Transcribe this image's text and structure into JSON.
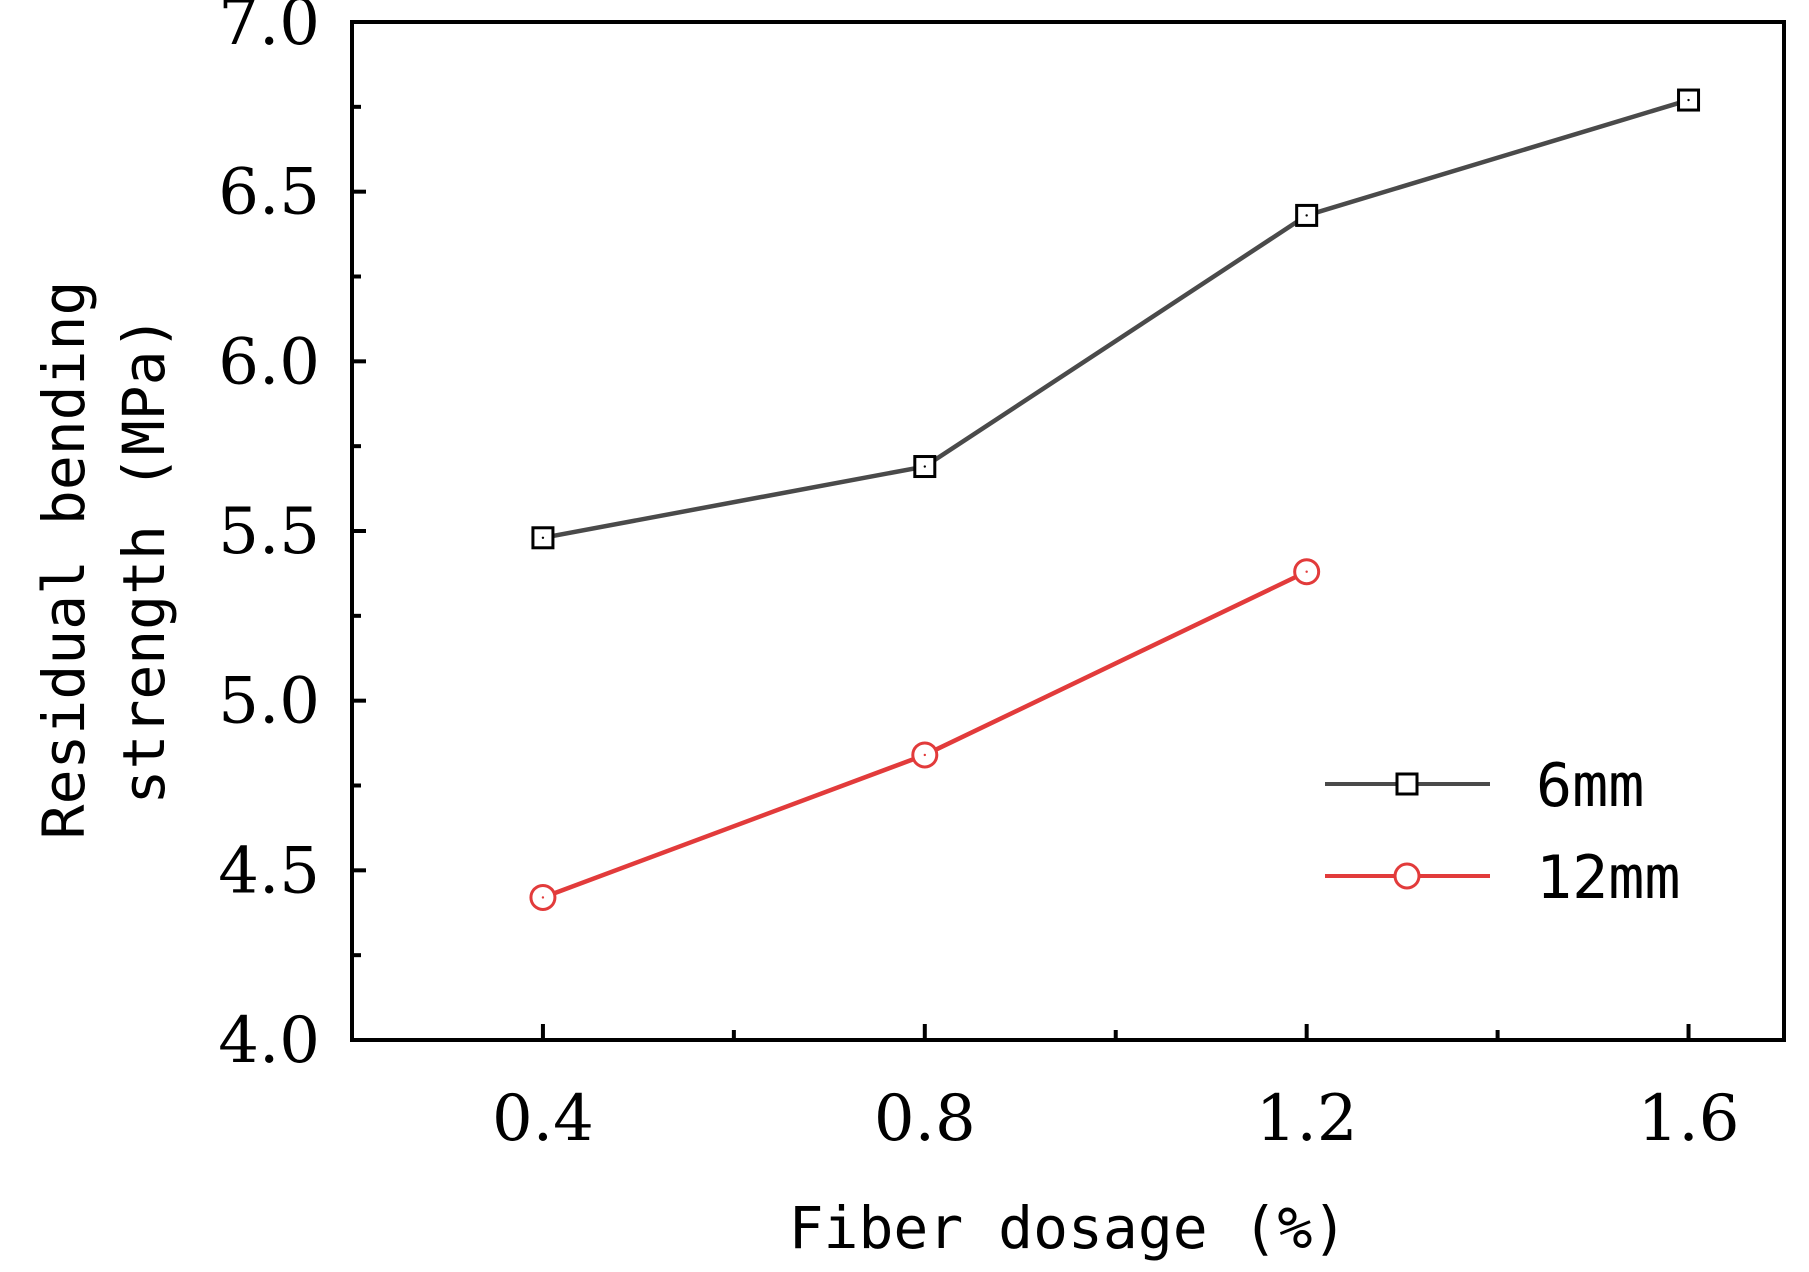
{
  "chart_data": {
    "type": "line",
    "title": "",
    "xlabel": "Fiber dosage (%)",
    "ylabel_line1": "Residual bending",
    "ylabel_line2": "strength (MPa)",
    "xlim": [
      0.2,
      1.7
    ],
    "ylim": [
      4.0,
      7.0
    ],
    "x_ticks": [
      0.4,
      0.8,
      1.2,
      1.6
    ],
    "x_tick_labels": [
      "0.4",
      "0.8",
      "1.2",
      "1.6"
    ],
    "y_ticks": [
      4.0,
      4.5,
      5.0,
      5.5,
      6.0,
      6.5,
      7.0
    ],
    "y_tick_labels": [
      "4.0",
      "4.5",
      "5.0",
      "5.5",
      "6.0",
      "6.5",
      "7.0"
    ],
    "grid": false,
    "legend_position": "bottom-right",
    "series": [
      {
        "name": "6mm",
        "marker": "square",
        "color": "#4a4a4a",
        "x": [
          0.4,
          0.8,
          1.2,
          1.6
        ],
        "values": [
          5.48,
          5.69,
          6.43,
          6.77
        ]
      },
      {
        "name": "12mm",
        "marker": "circle",
        "color": "#e23b3b",
        "x": [
          0.4,
          0.8,
          1.2
        ],
        "values": [
          4.42,
          4.84,
          5.38
        ]
      }
    ]
  }
}
